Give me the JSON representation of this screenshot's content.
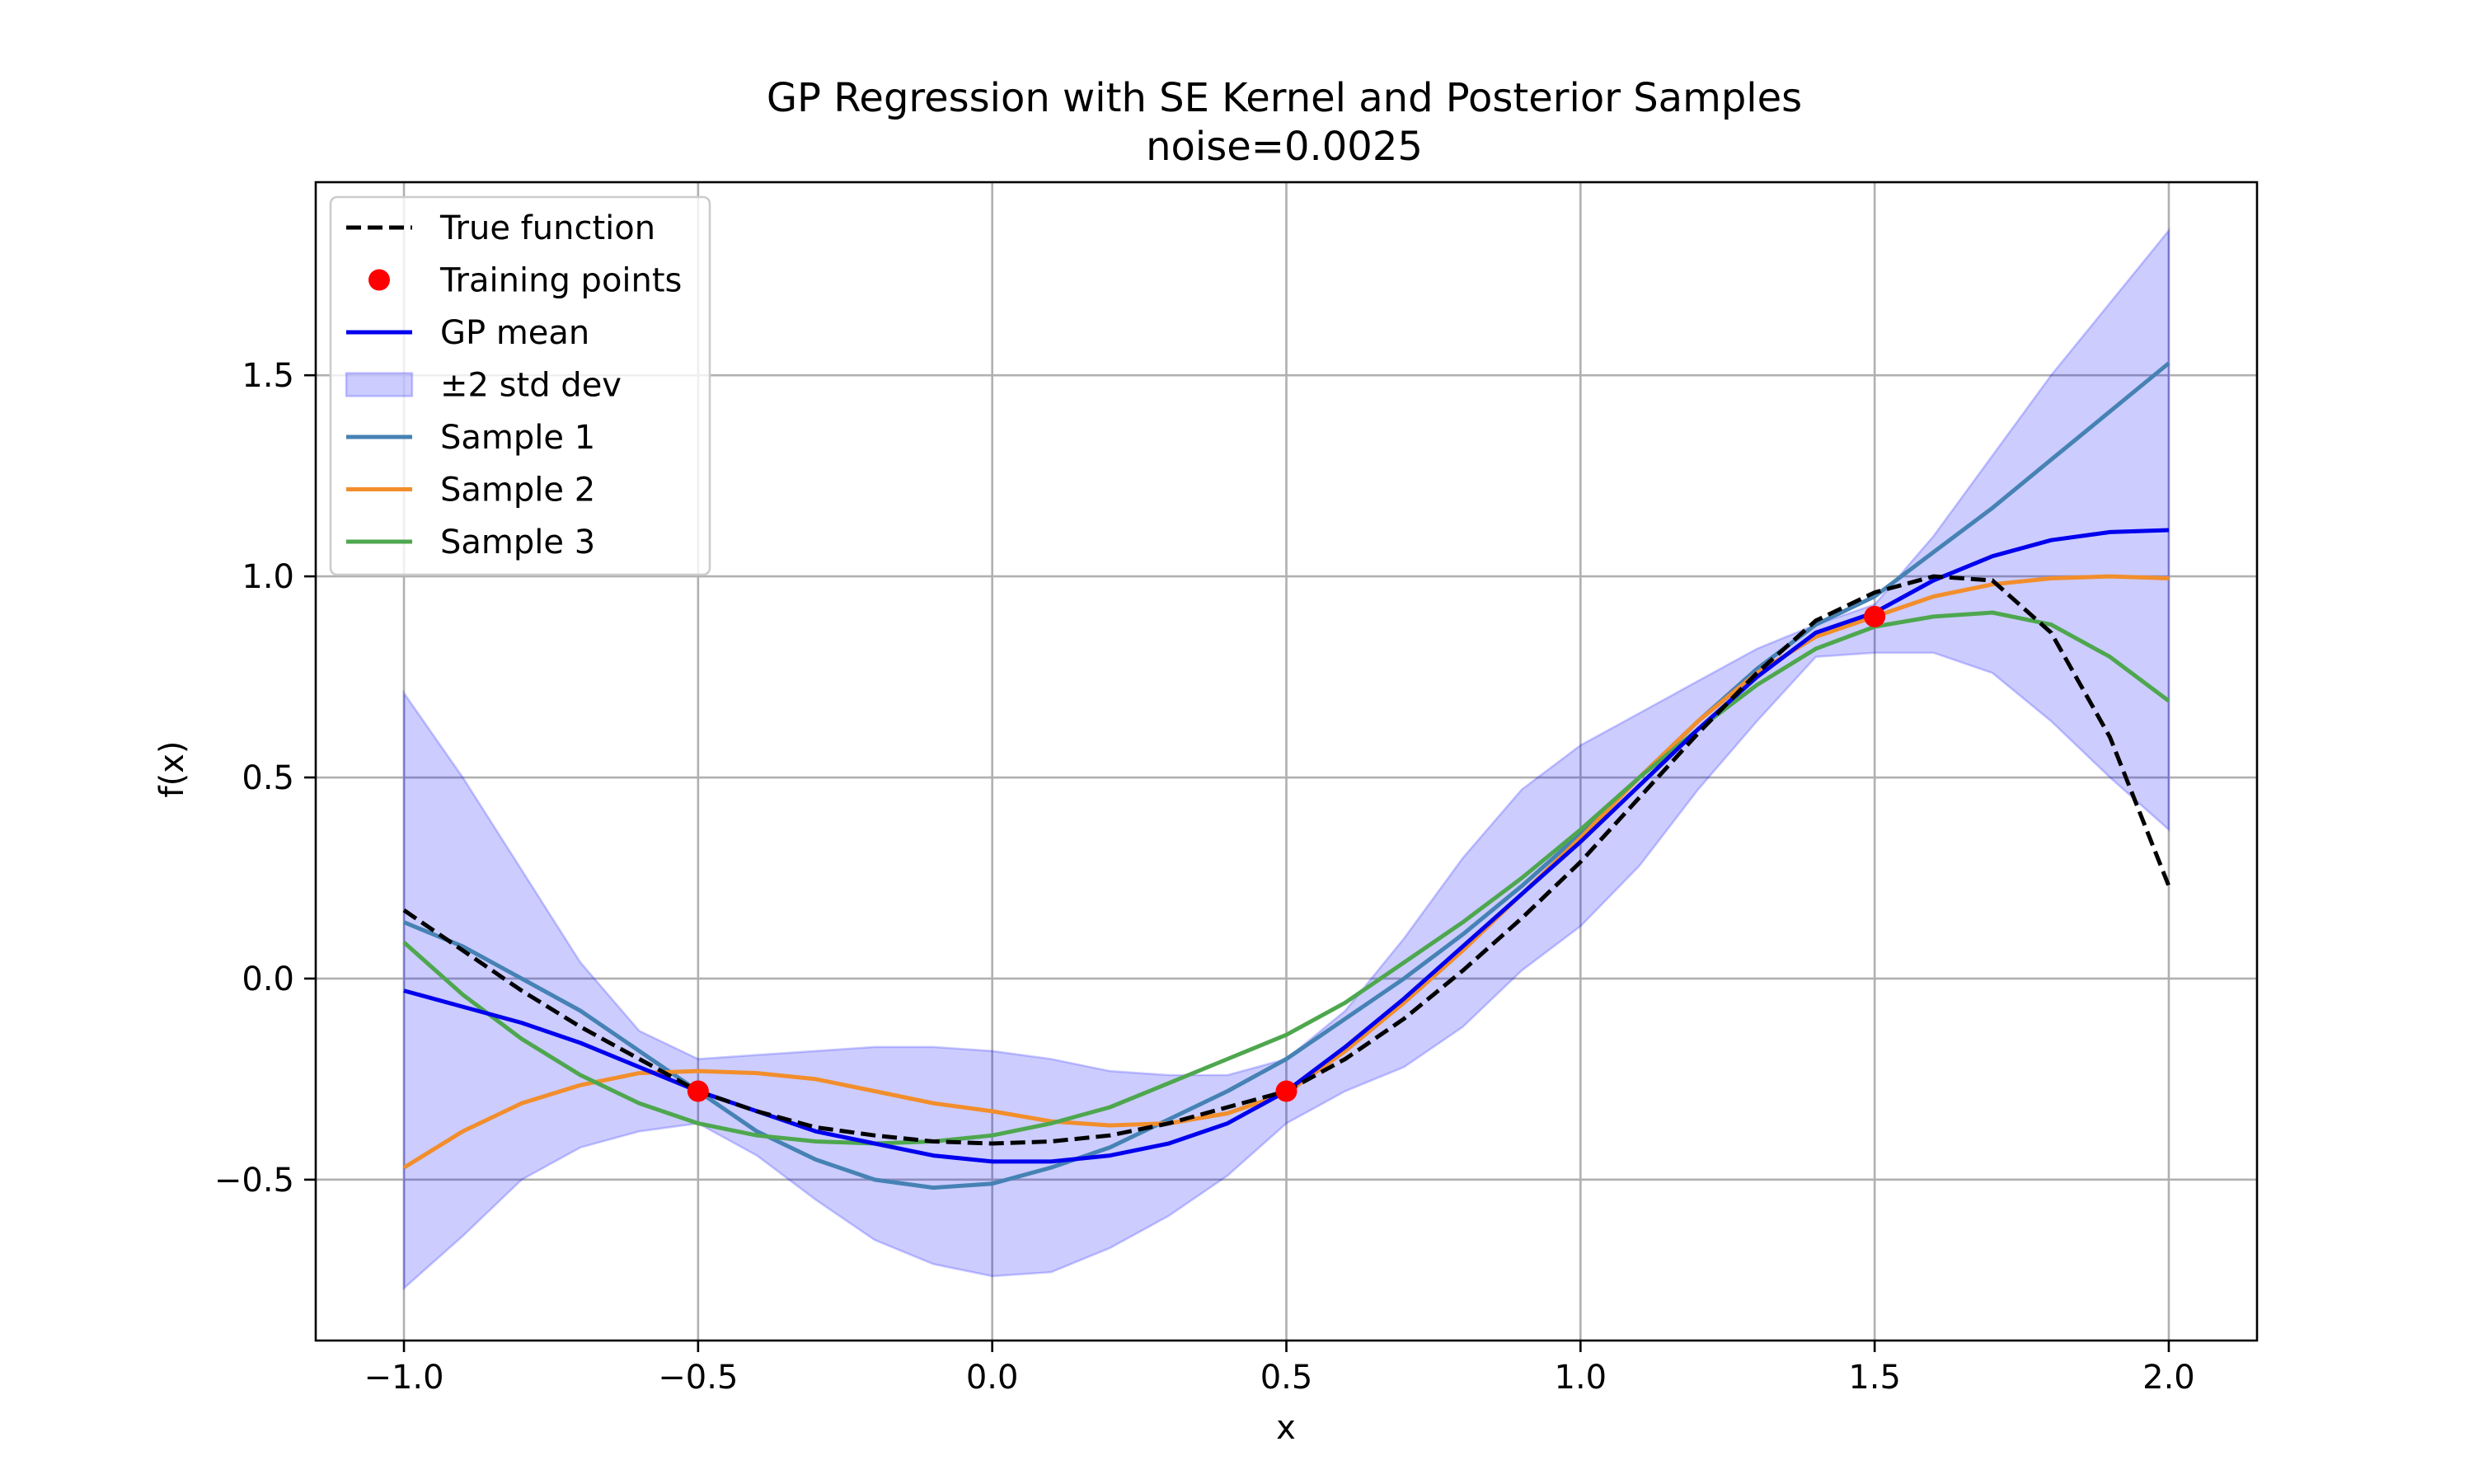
{
  "chart_data": {
    "type": "line",
    "title": "GP Regression with SE Kernel and Posterior Samples",
    "subtitle": "noise=0.0025",
    "xlabel": "x",
    "ylabel": "f(x)",
    "xlim": [
      -1.15,
      2.15
    ],
    "ylim": [
      -0.9,
      1.98
    ],
    "xticks": [
      -1.0,
      -0.5,
      0.0,
      0.5,
      1.0,
      1.5,
      2.0
    ],
    "xtick_labels": [
      "−1.0",
      "−0.5",
      "0.0",
      "0.5",
      "1.0",
      "1.5",
      "2.0"
    ],
    "yticks": [
      -0.5,
      0.0,
      0.5,
      1.0,
      1.5
    ],
    "ytick_labels": [
      "−0.5",
      "0.0",
      "0.5",
      "1.0",
      "1.5"
    ],
    "grid": true,
    "legend_position": "top-left",
    "x": [
      -1.0,
      -0.9,
      -0.8,
      -0.7,
      -0.6,
      -0.5,
      -0.4,
      -0.3,
      -0.2,
      -0.1,
      0.0,
      0.1,
      0.2,
      0.3,
      0.4,
      0.5,
      0.6,
      0.7,
      0.8,
      0.9,
      1.0,
      1.1,
      1.2,
      1.3,
      1.4,
      1.5,
      1.6,
      1.7,
      1.8,
      1.9,
      2.0
    ],
    "true_function": {
      "name": "True function",
      "color": "#000000",
      "values": [
        0.17,
        0.07,
        -0.03,
        -0.12,
        -0.2,
        -0.28,
        -0.33,
        -0.37,
        -0.39,
        -0.405,
        -0.41,
        -0.405,
        -0.39,
        -0.36,
        -0.32,
        -0.28,
        -0.2,
        -0.1,
        0.02,
        0.15,
        0.29,
        0.45,
        0.61,
        0.76,
        0.89,
        0.96,
        1.0,
        0.99,
        0.86,
        0.6,
        0.23
      ]
    },
    "training_points": {
      "name": "Training points",
      "color": "#ff0000",
      "x": [
        -0.5,
        0.5,
        1.5
      ],
      "y": [
        -0.28,
        -0.28,
        0.9
      ]
    },
    "gp_mean": {
      "name": "GP mean",
      "color": "#0000ee",
      "values": [
        -0.03,
        -0.07,
        -0.11,
        -0.16,
        -0.22,
        -0.28,
        -0.33,
        -0.38,
        -0.41,
        -0.44,
        -0.455,
        -0.455,
        -0.44,
        -0.41,
        -0.36,
        -0.28,
        -0.17,
        -0.05,
        0.08,
        0.21,
        0.34,
        0.48,
        0.62,
        0.75,
        0.86,
        0.91,
        0.99,
        1.05,
        1.09,
        1.11,
        1.115
      ]
    },
    "std_band": {
      "name": "±2 std dev",
      "color": "#0000ff",
      "upper": [
        0.71,
        0.5,
        0.27,
        0.04,
        -0.13,
        -0.2,
        -0.19,
        -0.18,
        -0.17,
        -0.17,
        -0.18,
        -0.2,
        -0.23,
        -0.24,
        -0.24,
        -0.2,
        -0.08,
        0.1,
        0.3,
        0.47,
        0.58,
        0.66,
        0.74,
        0.82,
        0.88,
        0.93,
        1.1,
        1.3,
        1.5,
        1.68,
        1.86
      ],
      "lower": [
        -0.77,
        -0.64,
        -0.5,
        -0.42,
        -0.38,
        -0.36,
        -0.44,
        -0.55,
        -0.65,
        -0.71,
        -0.74,
        -0.73,
        -0.67,
        -0.59,
        -0.49,
        -0.36,
        -0.28,
        -0.22,
        -0.12,
        0.02,
        0.13,
        0.28,
        0.47,
        0.64,
        0.8,
        0.81,
        0.81,
        0.76,
        0.64,
        0.5,
        0.37
      ]
    },
    "samples": [
      {
        "name": "Sample 1",
        "color": "#4682b4",
        "values": [
          0.14,
          0.08,
          0.0,
          -0.08,
          -0.18,
          -0.28,
          -0.38,
          -0.45,
          -0.5,
          -0.52,
          -0.51,
          -0.47,
          -0.42,
          -0.35,
          -0.28,
          -0.2,
          -0.1,
          0.0,
          0.11,
          0.23,
          0.36,
          0.5,
          0.64,
          0.77,
          0.88,
          0.95,
          1.06,
          1.17,
          1.29,
          1.41,
          1.53
        ]
      },
      {
        "name": "Sample 2",
        "color": "#f28e2b",
        "values": [
          -0.47,
          -0.38,
          -0.31,
          -0.265,
          -0.235,
          -0.23,
          -0.235,
          -0.25,
          -0.28,
          -0.31,
          -0.33,
          -0.355,
          -0.365,
          -0.36,
          -0.335,
          -0.285,
          -0.18,
          -0.06,
          0.07,
          0.21,
          0.35,
          0.5,
          0.64,
          0.76,
          0.85,
          0.9,
          0.95,
          0.98,
          0.995,
          1.0,
          0.995
        ]
      },
      {
        "name": "Sample 3",
        "color": "#4ea74e",
        "values": [
          0.09,
          -0.04,
          -0.15,
          -0.24,
          -0.31,
          -0.36,
          -0.39,
          -0.405,
          -0.41,
          -0.405,
          -0.39,
          -0.36,
          -0.32,
          -0.26,
          -0.2,
          -0.14,
          -0.06,
          0.04,
          0.14,
          0.25,
          0.37,
          0.5,
          0.62,
          0.73,
          0.82,
          0.875,
          0.9,
          0.91,
          0.88,
          0.8,
          0.69
        ]
      }
    ]
  }
}
